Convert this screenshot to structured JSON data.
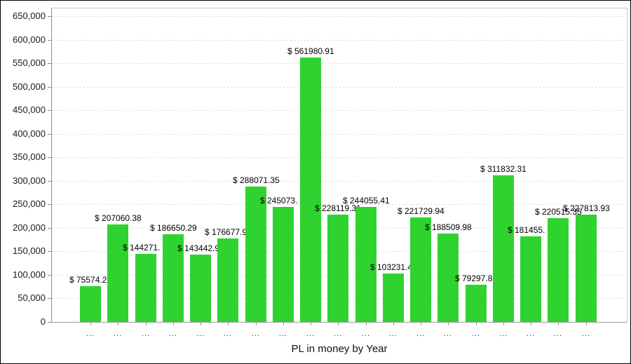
{
  "chart_data": {
    "type": "bar",
    "title": "",
    "xlabel": "PL in money by Year",
    "ylabel": "",
    "legend": "none",
    "grid": "horizontal-dashed",
    "categories": [
      "...",
      "...",
      "...",
      "...",
      "...",
      "...",
      "...",
      "...",
      "...",
      "...",
      "...",
      "...",
      "...",
      "...",
      "...",
      "...",
      "...",
      "...",
      "..."
    ],
    "values": [
      75574.2,
      207060.38,
      144271,
      186650.29,
      143442.9,
      176677.9,
      288071.35,
      245073,
      561980.91,
      228119.31,
      244055.41,
      103231.4,
      221729.94,
      188509.98,
      79297.8,
      311832.31,
      181455,
      220515.35,
      227813.93
    ],
    "bar_labels": [
      "$ 75574.2",
      "$ 207060.38",
      "$ 144271.",
      "$ 186650.29",
      "$ 143442.9",
      "$ 176677.9",
      "$ 288071.35",
      "$ 245073.",
      "$ 561980.91",
      "$ 228119.31",
      "$ 244055.41",
      "$ 103231.4",
      "$ 221729.94",
      "$ 188509.98",
      "$ 79297.8",
      "$ 311832.31",
      "$ 181455.",
      "$ 220515.35",
      "$ 227813.93"
    ],
    "y_axis": {
      "min": 0,
      "max": 650000,
      "tick_step": 50000,
      "tick_labels": [
        "0",
        "50,000",
        "100,000",
        "150,000",
        "200,000",
        "250,000",
        "300,000",
        "350,000",
        "400,000",
        "450,000",
        "500,000",
        "550,000",
        "600,000",
        "650,000"
      ]
    },
    "colors": {
      "bar": "#2fd32f",
      "gridline": "#d9d9d9",
      "axis_line": "#9a9a9a",
      "plot_border": "#c8c8c8",
      "label_text": "#000000",
      "outer_border": "#000000"
    }
  }
}
